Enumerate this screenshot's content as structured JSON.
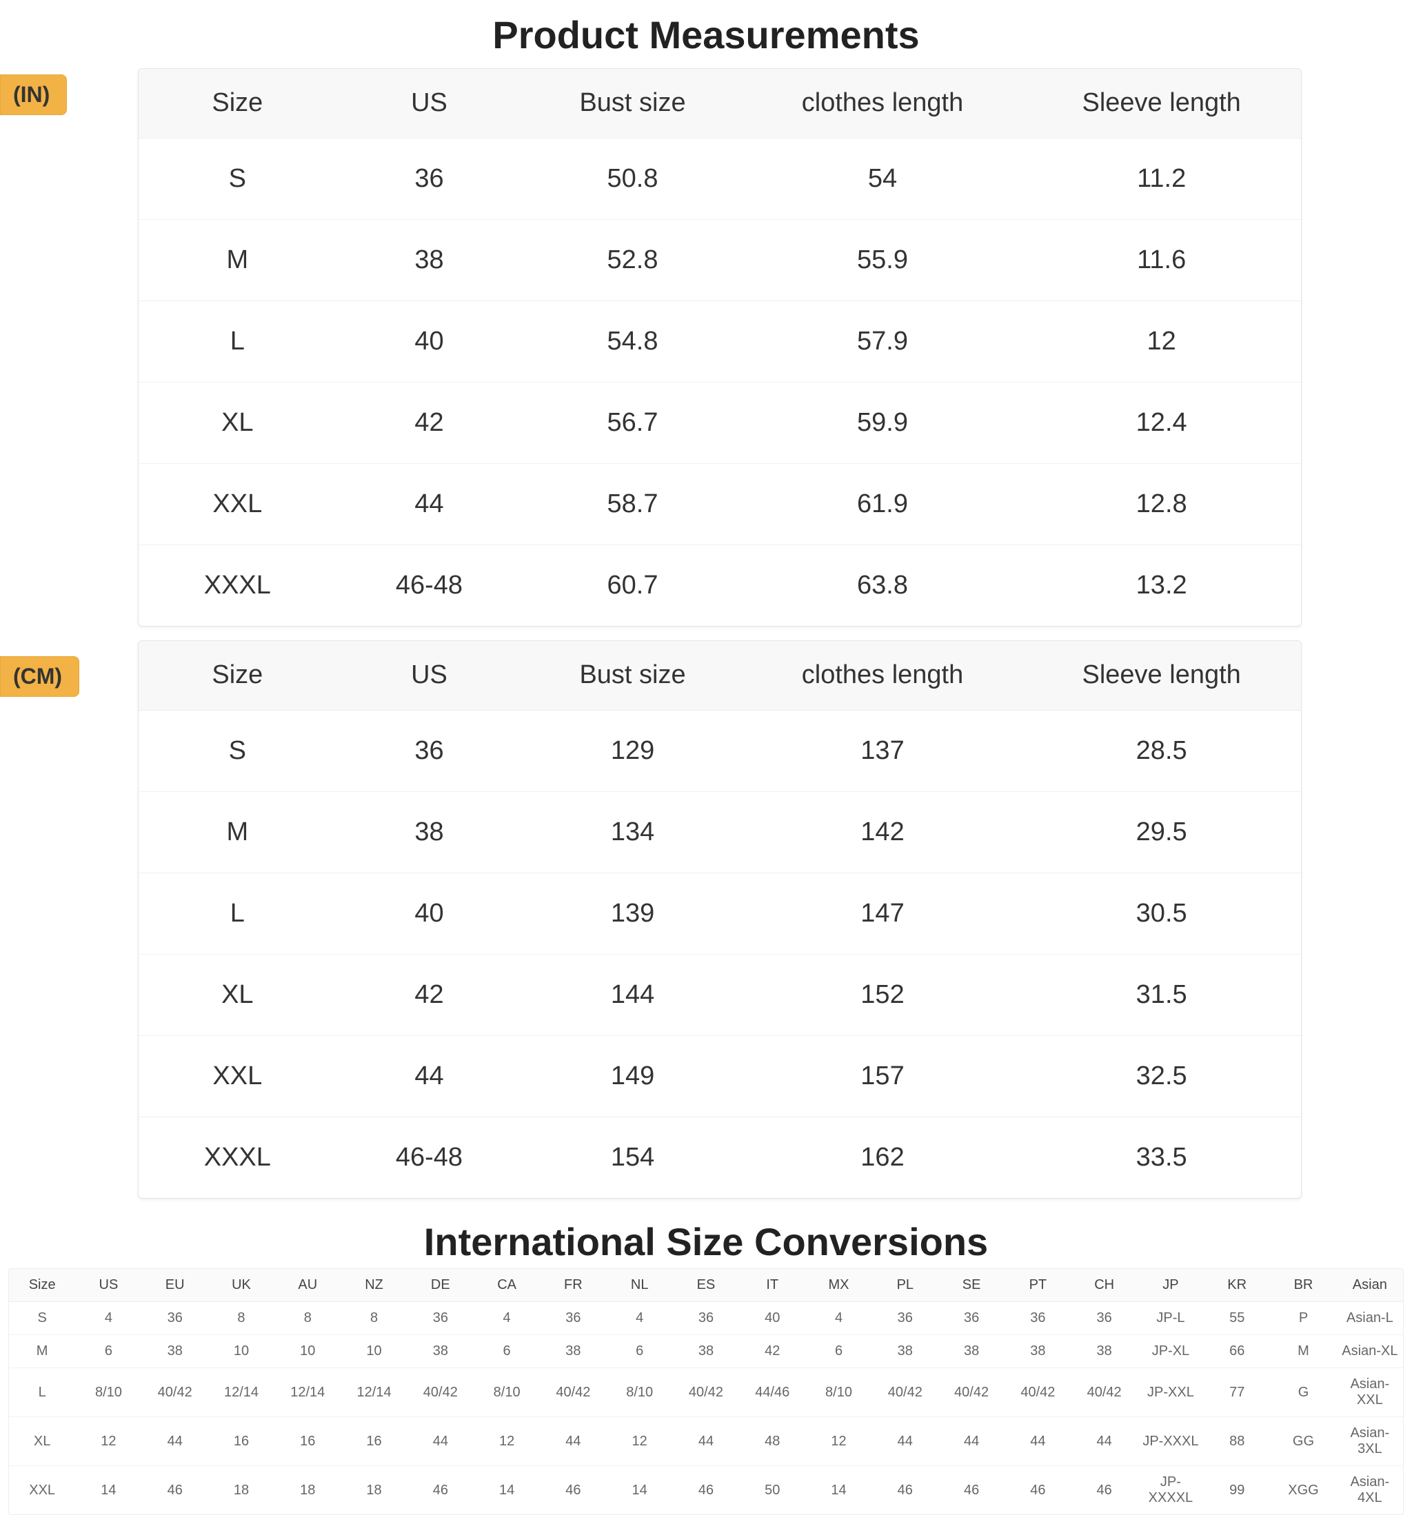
{
  "titles": {
    "main": "Product Measurements",
    "intl": "International Size Conversions"
  },
  "badges": {
    "in": "(IN)",
    "cm": "(CM)"
  },
  "measurements": {
    "columns": [
      "Size",
      "US",
      "Bust size",
      "clothes length",
      "Sleeve length"
    ],
    "in_rows": [
      [
        "S",
        "36",
        "50.8",
        "54",
        "11.2"
      ],
      [
        "M",
        "38",
        "52.8",
        "55.9",
        "11.6"
      ],
      [
        "L",
        "40",
        "54.8",
        "57.9",
        "12"
      ],
      [
        "XL",
        "42",
        "56.7",
        "59.9",
        "12.4"
      ],
      [
        "XXL",
        "44",
        "58.7",
        "61.9",
        "12.8"
      ],
      [
        "XXXL",
        "46-48",
        "60.7",
        "63.8",
        "13.2"
      ]
    ],
    "cm_rows": [
      [
        "S",
        "36",
        "129",
        "137",
        "28.5"
      ],
      [
        "M",
        "38",
        "134",
        "142",
        "29.5"
      ],
      [
        "L",
        "40",
        "139",
        "147",
        "30.5"
      ],
      [
        "XL",
        "42",
        "144",
        "152",
        "31.5"
      ],
      [
        "XXL",
        "44",
        "149",
        "157",
        "32.5"
      ],
      [
        "XXXL",
        "46-48",
        "154",
        "162",
        "33.5"
      ]
    ]
  },
  "intl": {
    "columns": [
      "Size",
      "US",
      "EU",
      "UK",
      "AU",
      "NZ",
      "DE",
      "CA",
      "FR",
      "NL",
      "ES",
      "IT",
      "MX",
      "PL",
      "SE",
      "PT",
      "CH",
      "JP",
      "KR",
      "BR",
      "Asian"
    ],
    "rows": [
      [
        "S",
        "4",
        "36",
        "8",
        "8",
        "8",
        "36",
        "4",
        "36",
        "4",
        "36",
        "40",
        "4",
        "36",
        "36",
        "36",
        "36",
        "JP-L",
        "55",
        "P",
        "Asian-L"
      ],
      [
        "M",
        "6",
        "38",
        "10",
        "10",
        "10",
        "38",
        "6",
        "38",
        "6",
        "38",
        "42",
        "6",
        "38",
        "38",
        "38",
        "38",
        "JP-XL",
        "66",
        "M",
        "Asian-XL"
      ],
      [
        "L",
        "8/10",
        "40/42",
        "12/14",
        "12/14",
        "12/14",
        "40/42",
        "8/10",
        "40/42",
        "8/10",
        "40/42",
        "44/46",
        "8/10",
        "40/42",
        "40/42",
        "40/42",
        "40/42",
        "JP-XXL",
        "77",
        "G",
        "Asian-XXL"
      ],
      [
        "XL",
        "12",
        "44",
        "16",
        "16",
        "16",
        "44",
        "12",
        "44",
        "12",
        "44",
        "48",
        "12",
        "44",
        "44",
        "44",
        "44",
        "JP-XXXL",
        "88",
        "GG",
        "Asian-3XL"
      ],
      [
        "XXL",
        "14",
        "46",
        "18",
        "18",
        "18",
        "46",
        "14",
        "46",
        "14",
        "46",
        "50",
        "14",
        "46",
        "46",
        "46",
        "46",
        "JP-XXXXL",
        "99",
        "XGG",
        "Asian-4XL"
      ]
    ]
  },
  "style": {
    "badge_bg": "#f2b246",
    "header_bg": "#f8f8f8",
    "border": "#e5e5e5",
    "row_border": "#f0f0f0",
    "title_fontsize": 56,
    "meas_fontsize": 38,
    "intl_fontsize": 20
  }
}
